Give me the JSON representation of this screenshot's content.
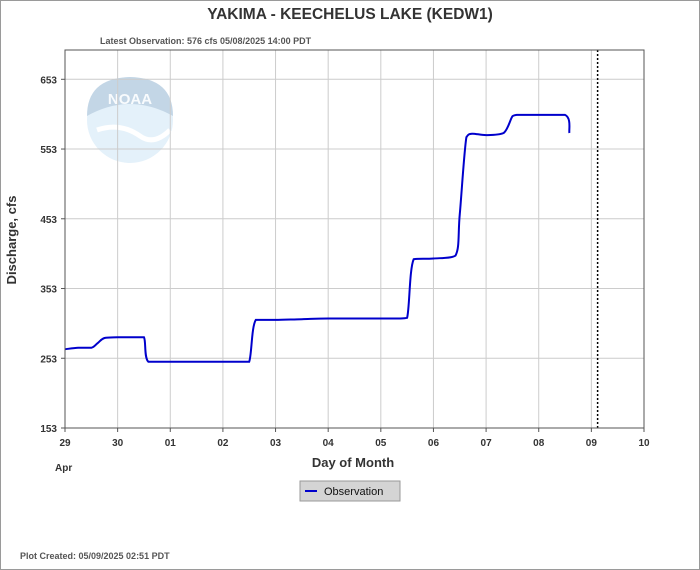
{
  "header": {
    "title": "YAKIMA - KEECHELUS LAKE  (KEDW1)",
    "latest_observation": "Latest Observation: 576 cfs 05/08/2025 14:00 PDT"
  },
  "footer": {
    "plot_created": "Plot Created: 05/09/2025 02:51 PDT"
  },
  "watermark": {
    "logo_text": "NOAA",
    "icon": "noaa-logo-icon"
  },
  "colors": {
    "series": "#0000cc",
    "grid": "#cccccc",
    "forecast_marker": "#000000",
    "legend_bg": "#d4d4d4"
  },
  "chart_data": {
    "type": "line",
    "xlabel": "Day of Month",
    "ylabel": "Discharge, cfs",
    "month_label": "Apr",
    "x_ticks": [
      "29",
      "30",
      "01",
      "02",
      "03",
      "04",
      "05",
      "06",
      "07",
      "08",
      "09",
      "10"
    ],
    "y_ticks": [
      "153",
      "253",
      "353",
      "453",
      "553",
      "653"
    ],
    "xlim": [
      "2025-04-29T00:00",
      "2025-05-10T00:00"
    ],
    "ylim": [
      153,
      695
    ],
    "grid": true,
    "legend_position": "bottom-center",
    "time_marker": "2025-05-09T02:51",
    "series": [
      {
        "name": "Observation",
        "x": [
          "2025-04-29T00:00",
          "2025-04-29T06:00",
          "2025-04-29T12:00",
          "2025-04-29T15:00",
          "2025-04-29T18:00",
          "2025-04-30T00:00",
          "2025-04-30T08:00",
          "2025-04-30T12:00",
          "2025-04-30T14:00",
          "2025-05-01T00:00",
          "2025-05-02T00:00",
          "2025-05-02T08:00",
          "2025-05-02T12:00",
          "2025-05-02T15:00",
          "2025-05-03T00:00",
          "2025-05-03T12:00",
          "2025-05-04T00:00",
          "2025-05-05T00:00",
          "2025-05-05T08:00",
          "2025-05-05T12:00",
          "2025-05-05T15:00",
          "2025-05-06T00:00",
          "2025-05-06T10:00",
          "2025-05-06T12:00",
          "2025-05-06T15:00",
          "2025-05-06T18:00",
          "2025-05-07T00:00",
          "2025-05-07T08:00",
          "2025-05-07T12:00",
          "2025-05-07T14:00",
          "2025-05-07T20:00",
          "2025-05-08T12:00",
          "2025-05-08T14:00"
        ],
        "y": [
          266,
          268,
          268,
          275,
          282,
          283,
          283,
          283,
          248,
          248,
          248,
          248,
          248,
          308,
          308,
          309,
          310,
          310,
          310,
          311,
          395,
          396,
          400,
          460,
          570,
          575,
          573,
          576,
          600,
          602,
          602,
          602,
          576
        ]
      }
    ]
  }
}
